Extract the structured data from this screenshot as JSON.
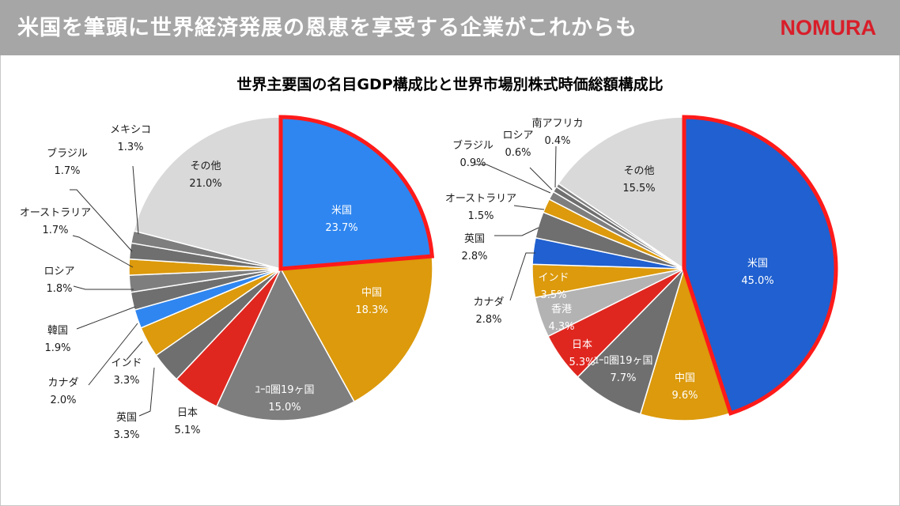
{
  "header": {
    "title": "米国を筆頭に世界経済発展の恩恵を享受する企業がこれからも",
    "logo": "NOMURA"
  },
  "main_title": "世界主要国の名目GDP構成比と世界市場別株式時価総額構成比",
  "colors": {
    "title_bar": "#a6a6a6",
    "logo": "#d81e2a",
    "highlight_border": "#ff1a1a"
  },
  "chart_data": [
    {
      "type": "pie",
      "title": "",
      "slices": [
        {
          "label": "米国",
          "value": 23.7,
          "display": "23.7%",
          "color": "#2f86f0",
          "highlight": true
        },
        {
          "label": "中国",
          "value": 18.3,
          "display": "18.3%",
          "color": "#dc9a0c"
        },
        {
          "label": "ﾕｰﾛ圏19ヶ国",
          "value": 15.0,
          "display": "15.0%",
          "color": "#7e7e7e"
        },
        {
          "label": "日本",
          "value": 5.1,
          "display": "5.1%",
          "color": "#e0271f"
        },
        {
          "label": "英国",
          "value": 3.3,
          "display": "3.3%",
          "color": "#6f6f6f"
        },
        {
          "label": "インド",
          "value": 3.3,
          "display": "3.3%",
          "color": "#dc9a0c"
        },
        {
          "label": "カナダ",
          "value": 2.0,
          "display": "2.0%",
          "color": "#2f86f0"
        },
        {
          "label": "韓国",
          "value": 1.9,
          "display": "1.9%",
          "color": "#6f6f6f"
        },
        {
          "label": "ロシア",
          "value": 1.8,
          "display": "1.8%",
          "color": "#7e7e7e"
        },
        {
          "label": "オーストラリア",
          "value": 1.7,
          "display": "1.7%",
          "color": "#dc9a0c"
        },
        {
          "label": "ブラジル",
          "value": 1.7,
          "display": "1.7%",
          "color": "#6f6f6f"
        },
        {
          "label": "メキシコ",
          "value": 1.3,
          "display": "1.3%",
          "color": "#7e7e7e"
        },
        {
          "label": "その他",
          "value": 21.0,
          "display": "21.0%",
          "color": "#d9d9d9"
        }
      ]
    },
    {
      "type": "pie",
      "title": "",
      "slices": [
        {
          "label": "米国",
          "value": 45.0,
          "display": "45.0%",
          "color": "#2060d0",
          "highlight": true
        },
        {
          "label": "中国",
          "value": 9.6,
          "display": "9.6%",
          "color": "#dc9a0c"
        },
        {
          "label": "ﾕｰﾛ圏19ヶ国",
          "value": 7.7,
          "display": "7.7%",
          "color": "#6f6f6f"
        },
        {
          "label": "日本",
          "value": 5.3,
          "display": "5.3%",
          "color": "#e0271f"
        },
        {
          "label": "香港",
          "value": 4.3,
          "display": "4.3%",
          "color": "#b3b3b3"
        },
        {
          "label": "インド",
          "value": 3.5,
          "display": "3.5%",
          "color": "#dc9a0c"
        },
        {
          "label": "カナダ",
          "value": 2.8,
          "display": "2.8%",
          "color": "#2060d0"
        },
        {
          "label": "英国",
          "value": 2.8,
          "display": "2.8%",
          "color": "#6f6f6f"
        },
        {
          "label": "オーストラリア",
          "value": 1.5,
          "display": "1.5%",
          "color": "#dc9a0c"
        },
        {
          "label": "ブラジル",
          "value": 0.9,
          "display": "0.9%",
          "color": "#7e7e7e"
        },
        {
          "label": "ロシア",
          "value": 0.6,
          "display": "0.6%",
          "color": "#6f6f6f"
        },
        {
          "label": "南アフリカ",
          "value": 0.4,
          "display": "0.4%",
          "color": "#7e7e7e"
        },
        {
          "label": "その他",
          "value": 15.5,
          "display": "15.5%",
          "color": "#d9d9d9"
        }
      ]
    }
  ]
}
